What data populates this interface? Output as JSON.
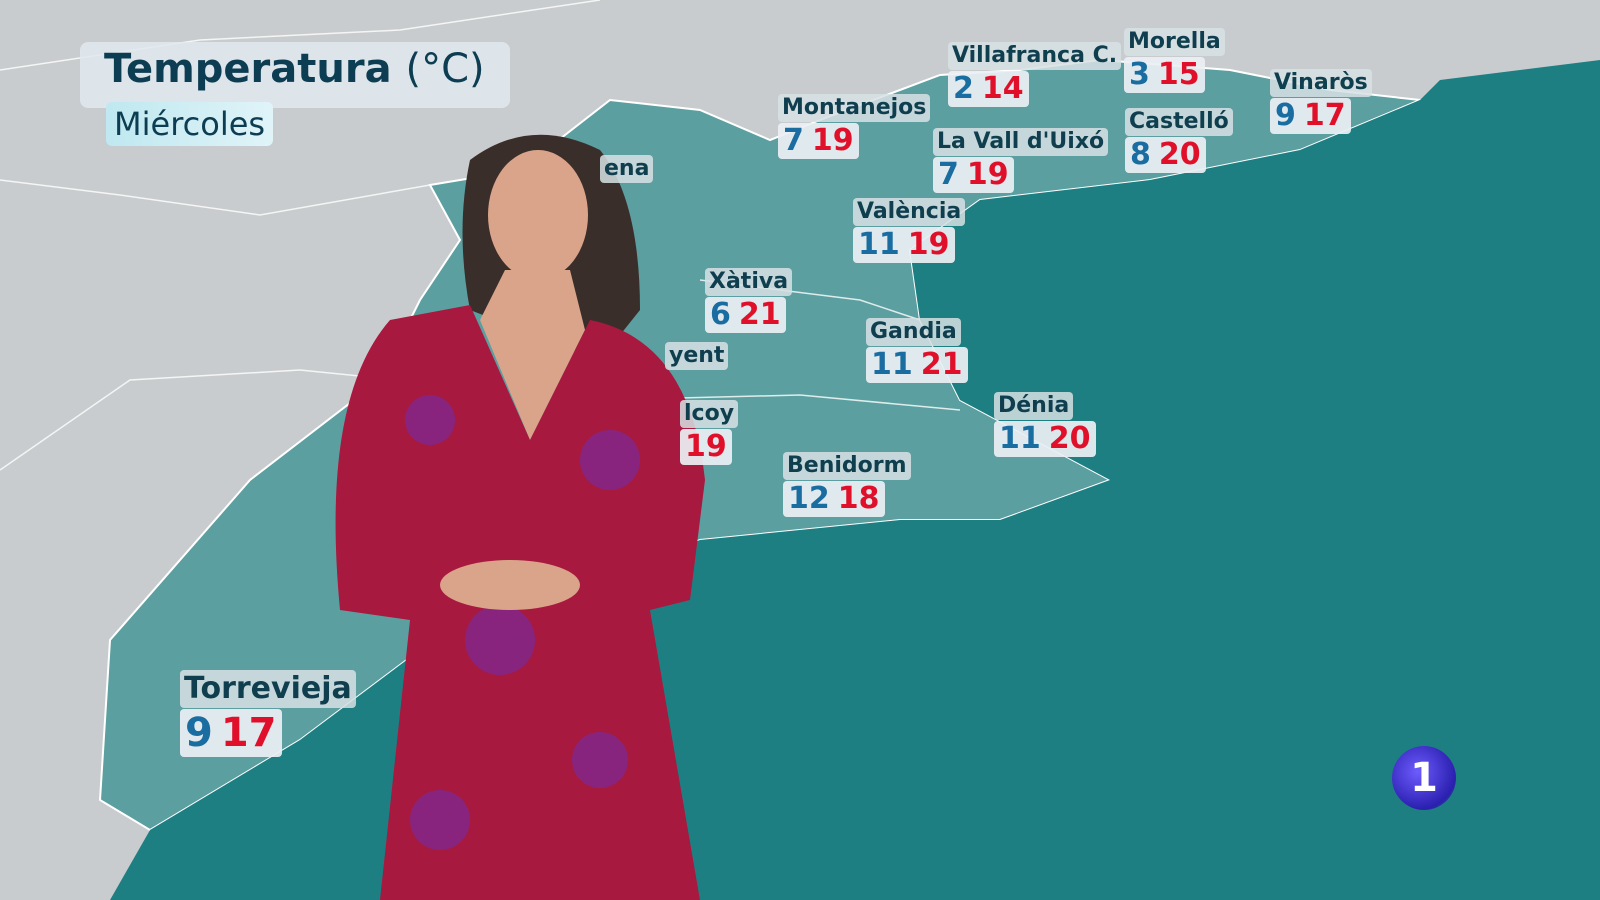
{
  "header": {
    "title": "Temperatura",
    "unit": "(°C)",
    "day": "Miércoles"
  },
  "colors": {
    "min": "#1a6da0",
    "max": "#e0102a",
    "sea": "#1e7f83",
    "land_region": "#5c9fa0",
    "land_other": "#c9ccce",
    "label_text": "#0f3e4f"
  },
  "cities": [
    {
      "name": "Villafranca C.",
      "min": "2",
      "max": "14"
    },
    {
      "name": "Morella",
      "min": "3",
      "max": "15"
    },
    {
      "name": "Vinaròs",
      "min": "9",
      "max": "17"
    },
    {
      "name": "Montanejos",
      "min": "7",
      "max": "19"
    },
    {
      "name": "La Vall d'Uixó",
      "min": "7",
      "max": "19"
    },
    {
      "name": "Castelló",
      "min": "8",
      "max": "20"
    },
    {
      "name": "València",
      "min": "11",
      "max": "19"
    },
    {
      "name": "Xàtiva",
      "min": "6",
      "max": "21"
    },
    {
      "name": "Gandia",
      "min": "11",
      "max": "21"
    },
    {
      "name": "Dénia",
      "min": "11",
      "max": "20"
    },
    {
      "name": "Benidorm",
      "min": "12",
      "max": "18"
    },
    {
      "name": "Torrevieja",
      "min": "9",
      "max": "17"
    }
  ],
  "occluded": {
    "ena": "ena",
    "yent": "yent",
    "lcoy": "lcoy",
    "lcoy_max": "19"
  },
  "logo": {
    "text": "1"
  }
}
